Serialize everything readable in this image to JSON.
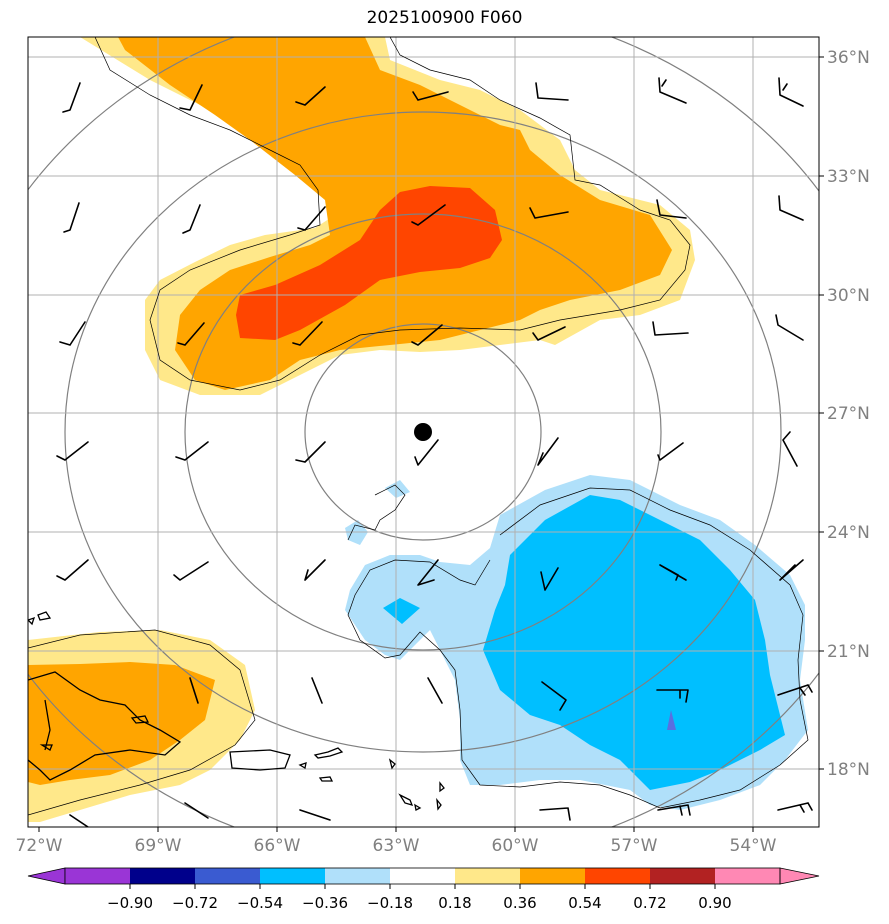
{
  "title": "2025100900 F060",
  "map": {
    "lon_range": [
      -72,
      -52.5
    ],
    "lat_range": [
      16.5,
      36.5
    ],
    "lon_labels": [
      "72°W",
      "69°W",
      "66°W",
      "63°W",
      "60°W",
      "57°W",
      "54°W"
    ],
    "lat_labels": [
      "36°N",
      "33°N",
      "30°N",
      "27°N",
      "24°N",
      "21°N",
      "18°N"
    ],
    "storm_center": {
      "lon": -62.3,
      "lat": 26.5
    },
    "range_rings_deg": [
      3.0,
      6.0,
      9.0,
      12.0
    ]
  },
  "colorbar": {
    "ticks": [
      "−0.90",
      "−0.72",
      "−0.54",
      "−0.36",
      "−0.18",
      "0.18",
      "0.36",
      "0.54",
      "0.72",
      "0.90"
    ],
    "colors": [
      "#9a35d6",
      "#00008b",
      "#3a5bd1",
      "#00bfff",
      "#b0e0fa",
      "#ffffff",
      "#ffe88a",
      "#ffa500",
      "#ff4500",
      "#b22222",
      "#ff88b4"
    ]
  }
}
